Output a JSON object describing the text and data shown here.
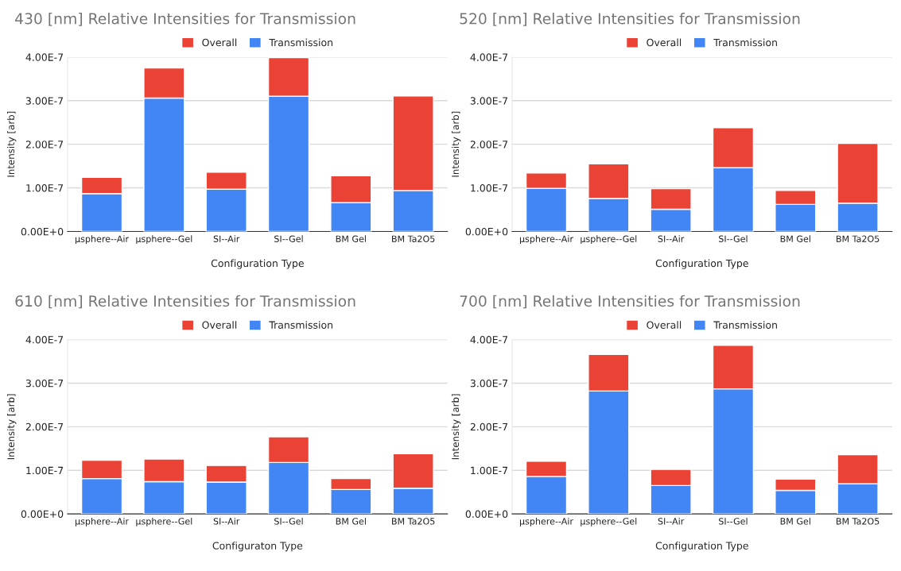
{
  "chart_data": [
    {
      "type": "bar",
      "title": "430 [nm] Relative Intensities for Transmission",
      "xlabel": "Configuration Type",
      "ylabel": "Intensity [arb]",
      "categories": [
        "µsphere--Air",
        "µsphere--Gel",
        "SI--Air",
        "SI--Gel",
        "BM Gel",
        "BM Ta2O5"
      ],
      "stacked": true,
      "legend": "top",
      "grid": "y",
      "ylim": [
        0,
        4e-07
      ],
      "yticks": [
        {
          "value": 0,
          "label": "0.00E+0"
        },
        {
          "value": 1e-07,
          "label": "1.00E-7"
        },
        {
          "value": 2e-07,
          "label": "2.00E-7"
        },
        {
          "value": 3e-07,
          "label": "3.00E-7"
        },
        {
          "value": 4e-07,
          "label": "4.00E-7"
        }
      ],
      "series": [
        {
          "name": "Transmission",
          "color": "#4285f4",
          "values": [
            8.7e-08,
            3.06e-07,
            9.7e-08,
            3.1e-07,
            6.6e-08,
            9.4e-08
          ]
        },
        {
          "name": "Overall",
          "color": "#ea4335",
          "values": [
            3.7e-08,
            6.9e-08,
            3.9e-08,
            8.9e-08,
            6.2e-08,
            2.17e-07
          ]
        }
      ]
    },
    {
      "type": "bar",
      "title": "520 [nm] Relative Intensities for Transmission",
      "xlabel": "Configuration Type",
      "ylabel": "Intensity [arb]",
      "categories": [
        "µsphere--Air",
        "µsphere--Gel",
        "SI--Air",
        "SI--Gel",
        "BM Gel",
        "BM Ta2O5"
      ],
      "stacked": true,
      "legend": "top",
      "grid": "y",
      "ylim": [
        0,
        4e-07
      ],
      "yticks": [
        {
          "value": 0,
          "label": "0.00E+0"
        },
        {
          "value": 1e-07,
          "label": "1.00E-7"
        },
        {
          "value": 2e-07,
          "label": "2.00E-7"
        },
        {
          "value": 3e-07,
          "label": "3.00E-7"
        },
        {
          "value": 4e-07,
          "label": "4.00E-7"
        }
      ],
      "series": [
        {
          "name": "Transmission",
          "color": "#4285f4",
          "values": [
            9.9e-08,
            7.6e-08,
            5.1e-08,
            1.46e-07,
            6.2e-08,
            6.5e-08
          ]
        },
        {
          "name": "Overall",
          "color": "#ea4335",
          "values": [
            3.5e-08,
            7.9e-08,
            4.7e-08,
            9.2e-08,
            3.2e-08,
            1.37e-07
          ]
        }
      ]
    },
    {
      "type": "bar",
      "title": "610 [nm] Relative Intensities for Transmission",
      "xlabel": "Configuraton Type",
      "ylabel": "Intensity [arb]",
      "categories": [
        "µsphere--Air",
        "µsphere--Gel",
        "SI--Air",
        "SI--Gel",
        "BM Gel",
        "BM Ta2O5"
      ],
      "stacked": true,
      "legend": "top",
      "grid": "y",
      "ylim": [
        0,
        4e-07
      ],
      "yticks": [
        {
          "value": 0,
          "label": "0.00E+0"
        },
        {
          "value": 1e-07,
          "label": "1.00E-7"
        },
        {
          "value": 2e-07,
          "label": "2.00E-7"
        },
        {
          "value": 3e-07,
          "label": "3.00E-7"
        },
        {
          "value": 4e-07,
          "label": "4.00E-7"
        }
      ],
      "series": [
        {
          "name": "Transmission",
          "color": "#4285f4",
          "values": [
            8.1e-08,
            7.4e-08,
            7.3e-08,
            1.18e-07,
            5.6e-08,
            5.9e-08
          ]
        },
        {
          "name": "Overall",
          "color": "#ea4335",
          "values": [
            4.2e-08,
            5.2e-08,
            3.8e-08,
            5.9e-08,
            2.5e-08,
            7.9e-08
          ]
        }
      ]
    },
    {
      "type": "bar",
      "title": "700 [nm] Relative Intensities for Transmission",
      "xlabel": "Configuration Type",
      "ylabel": "Intensity [arb]",
      "categories": [
        "µsphere--Air",
        "µsphere--Gel",
        "SI--Air",
        "SI--Gel",
        "BM Gel",
        "BM Ta2O5"
      ],
      "stacked": true,
      "legend": "top",
      "grid": "y",
      "ylim": [
        0,
        4e-07
      ],
      "yticks": [
        {
          "value": 0,
          "label": "0.00E+0"
        },
        {
          "value": 1e-07,
          "label": "1.00E-7"
        },
        {
          "value": 2e-07,
          "label": "2.00E-7"
        },
        {
          "value": 3e-07,
          "label": "3.00E-7"
        },
        {
          "value": 4e-07,
          "label": "4.00E-7"
        }
      ],
      "series": [
        {
          "name": "Transmission",
          "color": "#4285f4",
          "values": [
            8.6e-08,
            2.82e-07,
            6.5e-08,
            2.87e-07,
            5.4e-08,
            6.9e-08
          ]
        },
        {
          "name": "Overall",
          "color": "#ea4335",
          "values": [
            3.5e-08,
            8.4e-08,
            3.7e-08,
            1e-07,
            2.6e-08,
            6.7e-08
          ]
        }
      ]
    }
  ]
}
